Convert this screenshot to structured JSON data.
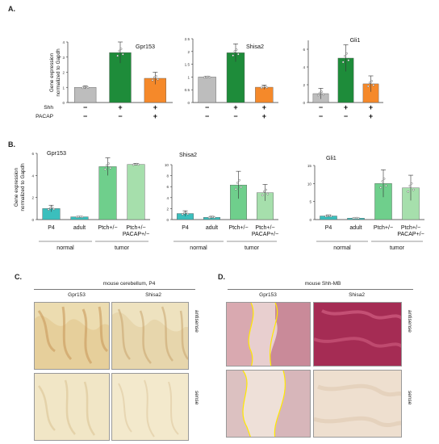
{
  "panels": {
    "a_letter": "A.",
    "b_letter": "B.",
    "c_letter": "C.",
    "d_letter": "D."
  },
  "panel_a": {
    "ylabel": "Gene expression\nnormalized to Gapdh",
    "row_labels": [
      "Shh",
      "PACAP"
    ],
    "sign_rows": [
      [
        "−",
        "+",
        "+"
      ],
      [
        "−",
        "−",
        "+"
      ]
    ],
    "colors": [
      "#bdbdbd",
      "#1e8c3a",
      "#f5892a"
    ]
  },
  "panel_b": {
    "ylabel": "Gene expression\nnormalized to Gapdh",
    "categories": [
      "P4",
      "adult",
      "Ptch+/−",
      "Ptch+/−\nPACAP+/−"
    ],
    "groups": [
      "normal",
      "tumor"
    ],
    "colors": [
      "#3bbfbd",
      "#3bbfbd",
      "#6fcf8c",
      "#a6dfac"
    ]
  },
  "chart_data": [
    {
      "type": "bar",
      "title": "Gpr153",
      "categories": [
        "Shh− PACAP−",
        "Shh+ PACAP−",
        "Shh+ PACAP+"
      ],
      "values": [
        1.0,
        3.3,
        1.6
      ],
      "errors": [
        0.1,
        0.7,
        0.4
      ],
      "ylim": [
        0,
        4
      ],
      "yticks": [
        0,
        1,
        2,
        3,
        4
      ]
    },
    {
      "type": "bar",
      "title": "Shisa2",
      "categories": [
        "Shh− PACAP−",
        "Shh+ PACAP−",
        "Shh+ PACAP+"
      ],
      "values": [
        1.0,
        1.95,
        0.6
      ],
      "errors": [
        0.03,
        0.35,
        0.08
      ],
      "ylim": [
        0,
        2.5
      ],
      "yticks": [
        0.0,
        0.5,
        1.0,
        1.5,
        2.0,
        2.5
      ]
    },
    {
      "type": "bar",
      "title": "Gli1",
      "categories": [
        "Shh− PACAP−",
        "Shh+ PACAP−",
        "Shh+ PACAP+"
      ],
      "values": [
        1.0,
        5.0,
        2.1
      ],
      "errors": [
        0.6,
        1.5,
        0.9
      ],
      "ylim": [
        0,
        7
      ],
      "yticks": [
        0,
        2,
        4,
        6
      ]
    },
    {
      "type": "bar",
      "title": "Gpr153",
      "categories": [
        "P4",
        "adult",
        "Ptch+/−",
        "Ptch+/− PACAP+/−"
      ],
      "values": [
        1.0,
        0.25,
        4.8,
        5.0
      ],
      "errors": [
        0.3,
        0.05,
        0.8,
        0.1
      ],
      "ylim": [
        0,
        6
      ],
      "yticks": [
        0,
        2,
        4,
        6
      ]
    },
    {
      "type": "bar",
      "title": "Shisa2",
      "categories": [
        "P4",
        "adult",
        "Ptch+/−",
        "Ptch+/− PACAP+/−"
      ],
      "values": [
        1.1,
        0.4,
        6.3,
        4.9
      ],
      "errors": [
        0.5,
        0.2,
        2.5,
        1.5
      ],
      "ylim": [
        0,
        10
      ],
      "yticks": [
        0,
        2,
        4,
        6,
        8,
        10
      ]
    },
    {
      "type": "bar",
      "title": "Gli1",
      "categories": [
        "P4",
        "adult",
        "Ptch+/−",
        "Ptch+/− PACAP+/−"
      ],
      "values": [
        1.0,
        0.4,
        10.0,
        8.8
      ],
      "errors": [
        0.3,
        0.1,
        3.8,
        3.5
      ],
      "ylim": [
        0,
        15
      ],
      "yticks": [
        0,
        5,
        10,
        15
      ]
    }
  ],
  "panel_c": {
    "title": "mouse cerebellum, P4",
    "col_labels": [
      "Gpr153",
      "Shisa2"
    ],
    "row_labels": [
      "antisense",
      "sense"
    ]
  },
  "panel_d": {
    "title": "mouse Shh-MB",
    "col_labels": [
      "Gpr153",
      "Shisa2"
    ],
    "row_labels": [
      "antisense",
      "sense"
    ]
  }
}
